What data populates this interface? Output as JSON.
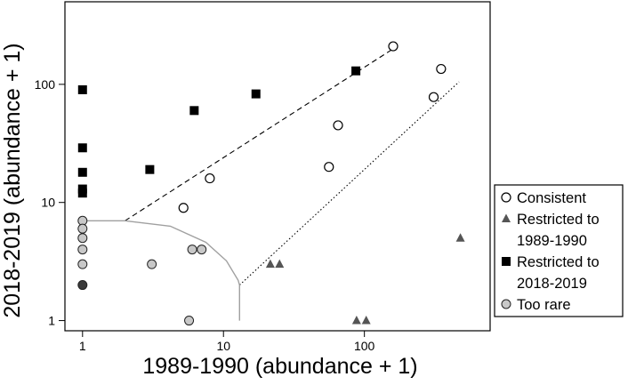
{
  "chart_data": {
    "type": "scatter",
    "title": "",
    "xlabel": "1989-1990 (abundance + 1)",
    "ylabel": "2018-2019 (abundance + 1)",
    "x_scale": "log",
    "y_scale": "log",
    "xlim": [
      0.75,
      780
    ],
    "ylim": [
      0.82,
      500
    ],
    "x_ticks": [
      1,
      10,
      100
    ],
    "x_tick_labels": [
      "1",
      "10",
      "100"
    ],
    "y_ticks": [
      1,
      10,
      100
    ],
    "y_tick_labels": [
      "1",
      "10",
      "100"
    ],
    "grid": false,
    "legend_position": "right",
    "series": [
      {
        "name": "Consistent",
        "marker": "open-circle",
        "color": "#000000",
        "points": [
          {
            "x": 5.2,
            "y": 9
          },
          {
            "x": 8,
            "y": 16
          },
          {
            "x": 65,
            "y": 45
          },
          {
            "x": 56,
            "y": 20
          },
          {
            "x": 160,
            "y": 210
          },
          {
            "x": 350,
            "y": 135
          },
          {
            "x": 310,
            "y": 78
          }
        ]
      },
      {
        "name": "Restricted to 1989-1990",
        "legend_lines": [
          "Restricted to",
          "1989-1990"
        ],
        "marker": "triangle",
        "color": "#555555",
        "points": [
          {
            "x": 21.5,
            "y": 3
          },
          {
            "x": 25,
            "y": 3
          },
          {
            "x": 88,
            "y": 1
          },
          {
            "x": 103,
            "y": 1
          },
          {
            "x": 480,
            "y": 5
          }
        ]
      },
      {
        "name": "Restricted to 2018-2019",
        "legend_lines": [
          "Restricted to",
          "2018-2019"
        ],
        "marker": "filled-square",
        "color": "#000000",
        "points": [
          {
            "x": 1,
            "y": 90
          },
          {
            "x": 1,
            "y": 29
          },
          {
            "x": 1,
            "y": 18
          },
          {
            "x": 1,
            "y": 12
          },
          {
            "x": 1,
            "y": 13
          },
          {
            "x": 3,
            "y": 19
          },
          {
            "x": 6.2,
            "y": 60
          },
          {
            "x": 17,
            "y": 83
          },
          {
            "x": 87,
            "y": 130
          }
        ]
      },
      {
        "name": "Too rare",
        "marker": "grey-circle",
        "color": "#c8c8c8",
        "points": [
          {
            "x": 1,
            "y": 7
          },
          {
            "x": 1,
            "y": 6
          },
          {
            "x": 1,
            "y": 5
          },
          {
            "x": 1,
            "y": 4
          },
          {
            "x": 1,
            "y": 3
          },
          {
            "x": 1,
            "y": 2
          },
          {
            "x": 3.1,
            "y": 3
          },
          {
            "x": 6,
            "y": 4
          },
          {
            "x": 7,
            "y": 4
          },
          {
            "x": 5.7,
            "y": 1
          }
        ]
      }
    ],
    "reference_lines": [
      {
        "style": "dashed",
        "color": "#000000",
        "points": [
          {
            "x": 2,
            "y": 7
          },
          {
            "x": 160,
            "y": 200
          }
        ]
      },
      {
        "style": "dotted",
        "color": "#000000",
        "points": [
          {
            "x": 13,
            "y": 2
          },
          {
            "x": 470,
            "y": 105
          }
        ]
      },
      {
        "style": "solid",
        "color": "#a0a0a0",
        "points": [
          {
            "x": 1,
            "y": 7
          },
          {
            "x": 2,
            "y": 7
          },
          {
            "x": 4.2,
            "y": 6.3
          },
          {
            "x": 7.5,
            "y": 4.6
          },
          {
            "x": 10.5,
            "y": 3.2
          },
          {
            "x": 12.7,
            "y": 2.2
          },
          {
            "x": 13,
            "y": 2
          },
          {
            "x": 13,
            "y": 1
          }
        ]
      }
    ]
  }
}
